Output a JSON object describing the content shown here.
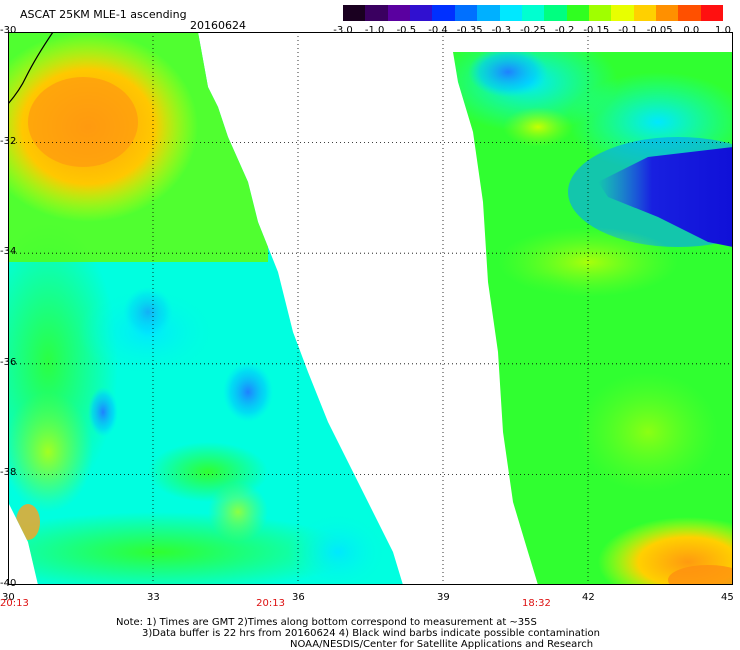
{
  "title": "ASCAT 25KM MLE-1 ascending",
  "date": "20160624",
  "colorbar": {
    "ticks": [
      "-3.0",
      "-1.0",
      "-0.5",
      "-0.4",
      "-0.35",
      "-0.3",
      "-0.25",
      "-0.2",
      "-0.15",
      "-0.1",
      "-0.05",
      "0.0",
      "1.0"
    ],
    "colors": [
      "#1a0020",
      "#3a0060",
      "#5a00a0",
      "#3010d0",
      "#0030ff",
      "#0070ff",
      "#00b0ff",
      "#00e8ff",
      "#00ffd0",
      "#00ff80",
      "#30ff20",
      "#a0ff00",
      "#e8ff00",
      "#ffd000",
      "#ff9000",
      "#ff5000",
      "#ff1010"
    ]
  },
  "axes": {
    "y_ticks": [
      "-30",
      "-32",
      "-34",
      "-36",
      "-38",
      "-40"
    ],
    "x_ticks": [
      "30",
      "33",
      "36",
      "39",
      "42",
      "45"
    ]
  },
  "pass_times": [
    {
      "label": "20:13",
      "lon": 30
    },
    {
      "label": "20:13",
      "lon": 35.3
    },
    {
      "label": "18:32",
      "lon": 40.8
    }
  ],
  "notes": {
    "line1": "Note: 1) Times are GMT 2)Times along bottom correspond to measurement at ~35S",
    "line2": "3)Data buffer is 22 hrs from 20160624 4) Black wind barbs indicate possible contamination",
    "line3": "NOAA/NESDIS/Center for Satellite Applications and Research"
  }
}
